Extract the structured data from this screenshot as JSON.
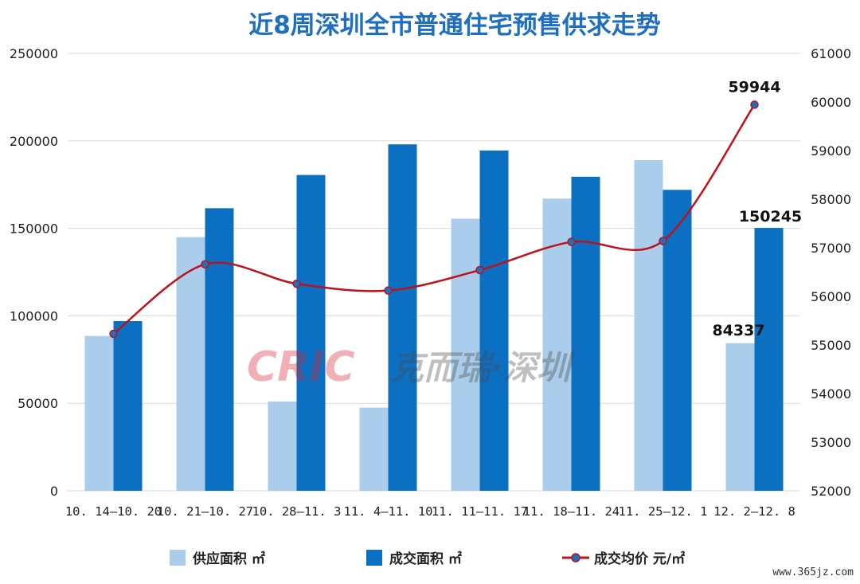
{
  "chart_data": {
    "type": "bar",
    "title": "近8周深圳全市普通住宅预售供求走势",
    "categories": [
      "10.14-10.20",
      "10.21-10.27",
      "10.28-11.3",
      "11.4-11.10",
      "11.11-11.17",
      "11.18-11.24",
      "11.25-12.1",
      "12.2-12.8"
    ],
    "category_labels": [
      "10. 14–10. 20",
      "10. 21–10. 27",
      "10. 28–11. 3",
      "11. 4–11. 10",
      "11. 11–11. 17",
      "11. 18–11. 24",
      "11. 25–12. 1",
      "12. 2–12. 8"
    ],
    "series": [
      {
        "name": "供应面积 ㎡",
        "type": "bar",
        "axis": "left",
        "color": "#a9cdea",
        "values": [
          88500,
          145000,
          51000,
          47500,
          155500,
          167000,
          189000,
          84337
        ]
      },
      {
        "name": "成交面积 ㎡",
        "type": "bar",
        "axis": "left",
        "color": "#0b6fc2",
        "values": [
          97000,
          161500,
          180500,
          198000,
          194500,
          179500,
          172000,
          150245
        ]
      },
      {
        "name": "成交均价 元/㎡",
        "type": "line",
        "axis": "right",
        "color": "#c0101a",
        "marker_color": "#1f6fc0",
        "values": [
          55230,
          56660,
          56260,
          56120,
          56540,
          57120,
          57140,
          59944
        ]
      }
    ],
    "y_left": {
      "min": 0,
      "max": 250000,
      "ticks": [
        0,
        50000,
        100000,
        150000,
        200000,
        250000
      ]
    },
    "y_right": {
      "min": 52000,
      "max": 61000,
      "ticks": [
        52000,
        53000,
        54000,
        55000,
        56000,
        57000,
        58000,
        59000,
        60000,
        61000
      ]
    },
    "data_labels": [
      {
        "series": 0,
        "index": 7,
        "text": "84337"
      },
      {
        "series": 1,
        "index": 7,
        "text": "150245"
      },
      {
        "series": 2,
        "index": 7,
        "text": "59944"
      }
    ],
    "grid": true,
    "legend": "bottom"
  },
  "watermark": {
    "logo": "CRIC",
    "text": "克而瑞·深圳"
  },
  "site_mark": "www.365jz.com"
}
